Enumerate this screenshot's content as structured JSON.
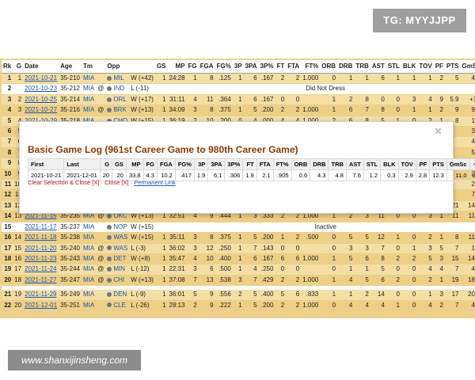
{
  "watermark": {
    "tg": "TG: MYYJJPP",
    "site": "www.shanxijinsheng.com"
  },
  "table": {
    "headers": [
      "Rk",
      "G",
      "Date",
      "Age",
      "Tm",
      "",
      "Opp",
      "",
      "GS",
      "MP",
      "FG",
      "FGA",
      "FG%",
      "3P",
      "3PA",
      "3P%",
      "FT",
      "FTA",
      "FT%",
      "ORB",
      "DRB",
      "TRB",
      "AST",
      "STL",
      "BLK",
      "TOV",
      "PF",
      "PTS",
      "GmSc",
      "+/-"
    ],
    "rows": [
      {
        "rk": "1",
        "g": "1",
        "date": "2021-10-21",
        "age": "35-210",
        "tm": "MIA",
        "loc": "",
        "opp": "MIL",
        "res": "W (+42)",
        "stats": [
          "1",
          "24:28",
          "1",
          "8",
          ".125",
          "1",
          "6",
          ".167",
          "2",
          "2",
          "1.000",
          "0",
          "1",
          "1",
          "6",
          "1",
          "1",
          "1",
          "2",
          "5",
          "4.2",
          "+22"
        ]
      },
      {
        "rk": "2",
        "g": "",
        "date": "2021-10-23",
        "age": "35-212",
        "tm": "MIA",
        "loc": "@",
        "opp": "IND",
        "res": "L (-11)",
        "span": "Did Not Dress"
      },
      {
        "rk": "3",
        "g": "2",
        "date": "2021-10-25",
        "age": "35-214",
        "tm": "MIA",
        "loc": "",
        "opp": "ORL",
        "res": "W (+17)",
        "stats": [
          "1",
          "31:11",
          "4",
          "11",
          ".364",
          "1",
          "6",
          ".167",
          "0",
          "0",
          "",
          "1",
          "2",
          "8",
          "0",
          "0",
          "3",
          "4",
          "9",
          "5.9",
          "+12",
          ""
        ]
      },
      {
        "rk": "4",
        "g": "3",
        "date": "2021-10-27",
        "age": "35-216",
        "tm": "MIA",
        "loc": "@",
        "opp": "BRK",
        "res": "W (+13)",
        "stats": [
          "1",
          "34:09",
          "3",
          "8",
          ".375",
          "1",
          "5",
          ".200",
          "2",
          "2",
          "1.000",
          "1",
          "6",
          "7",
          "8",
          "0",
          "1",
          "1",
          "2",
          "9",
          "9.6",
          "+19"
        ]
      },
      {
        "rk": "5",
        "g": "4",
        "date": "2021-10-29",
        "age": "35-218",
        "tm": "MIA",
        "loc": "",
        "opp": "CHO",
        "res": "W (+15)",
        "stats": [
          "1",
          "36:19",
          "2",
          "10",
          ".200",
          "0",
          "4",
          ".000",
          "4",
          "4",
          "1.000",
          "2",
          "6",
          "8",
          "5",
          "1",
          "0",
          "2",
          "1",
          "8",
          "1.6",
          "+11"
        ]
      },
      {
        "rk": "6",
        "g": "5",
        "date": "",
        "age": "",
        "tm": "",
        "loc": "",
        "opp": "",
        "res": "",
        "stats": [
          "",
          "",
          "",
          "",
          "",
          "",
          "",
          "",
          "",
          "",
          "",
          "",
          "",
          "",
          "",
          "",
          "",
          "",
          "",
          "",
          "3.8",
          "+9"
        ]
      },
      {
        "rk": "7",
        "g": "6",
        "date": "",
        "age": "",
        "tm": "",
        "loc": "",
        "opp": "",
        "res": "",
        "stats": [
          "",
          "",
          "",
          "",
          "",
          "",
          "",
          "",
          "",
          "",
          "",
          "",
          "",
          "",
          "",
          "",
          "",
          "",
          "",
          "",
          "4.9",
          "+2"
        ]
      },
      {
        "rk": "8",
        "g": "7",
        "date": "",
        "age": "",
        "tm": "",
        "loc": "",
        "opp": "",
        "res": "",
        "stats": [
          "",
          "",
          "",
          "",
          "",
          "",
          "",
          "",
          "",
          "",
          "",
          "",
          "",
          "",
          "",
          "",
          "",
          "",
          "",
          "",
          "5.3",
          "+9"
        ]
      },
      {
        "rk": "9",
        "g": "8",
        "date": "",
        "age": "",
        "tm": "",
        "loc": "",
        "opp": "",
        "res": "",
        "stats": [
          "",
          "",
          "",
          "",
          "",
          "",
          "",
          "",
          "",
          "",
          "",
          "",
          "",
          "",
          "",
          "",
          "",
          "",
          "",
          "",
          "6.4",
          "+11"
        ]
      },
      {
        "rk": "10",
        "g": "9",
        "date": "",
        "age": "",
        "tm": "",
        "loc": "",
        "opp": "",
        "res": "",
        "stats": [
          "",
          "",
          "",
          "",
          "",
          "",
          "",
          "",
          "",
          "",
          "",
          "",
          "",
          "",
          "",
          "",
          "",
          "",
          "",
          "",
          "2.2",
          "-13"
        ]
      },
      {
        "rk": "11",
        "g": "10",
        "date": "",
        "age": "",
        "tm": "",
        "loc": "",
        "opp": "",
        "res": "",
        "stats": [
          "",
          "",
          "",
          "",
          "",
          "",
          "",
          "",
          "",
          "",
          "",
          "",
          "",
          "",
          "",
          "",
          "",
          "",
          "",
          "",
          "2.9",
          "-8"
        ]
      },
      {
        "rk": "12",
        "g": "11",
        "date": "",
        "age": "",
        "tm": "",
        "loc": "",
        "opp": "",
        "res": "",
        "stats": [
          "",
          "",
          "",
          "",
          "",
          "",
          "",
          "",
          "",
          "",
          "",
          "",
          "",
          "",
          "",
          "",
          "",
          "",
          "",
          "",
          "7.9",
          "-6"
        ]
      },
      {
        "rk": "13",
        "g": "12",
        "date": "2021-11-13",
        "age": "35-233",
        "tm": "MIA",
        "loc": "@",
        "opp": "UTA",
        "res": "W (+6)",
        "stats": [
          "1",
          "35:01",
          "8",
          "14",
          ".571",
          "2",
          "6",
          ".333",
          "2",
          "3",
          ".667",
          "0",
          "6",
          "6",
          "4",
          "2",
          "0",
          "5",
          "3",
          "21",
          "14.8",
          "+4"
        ]
      },
      {
        "rk": "14",
        "g": "13",
        "date": "2021-11-15",
        "age": "35-235",
        "tm": "MIA",
        "loc": "@",
        "opp": "OKC",
        "res": "W (+13)",
        "stats": [
          "1",
          "32:51",
          "4",
          "9",
          ".444",
          "1",
          "3",
          ".333",
          "2",
          "2",
          "1.000",
          "1",
          "2",
          "3",
          "11",
          "0",
          "0",
          "3",
          "1",
          "11",
          "11.9",
          "+3"
        ]
      },
      {
        "rk": "15",
        "g": "",
        "date": "2021-11-17",
        "age": "35-237",
        "tm": "MIA",
        "loc": "",
        "opp": "NOP",
        "res": "W (+15)",
        "span": "Inactive"
      },
      {
        "rk": "16",
        "g": "14",
        "date": "2021-11-18",
        "age": "35-238",
        "tm": "MIA",
        "loc": "",
        "opp": "WAS",
        "res": "W (+15)",
        "stats": [
          "1",
          "35:11",
          "3",
          "8",
          ".375",
          "1",
          "5",
          ".200",
          "1",
          "2",
          ".500",
          "0",
          "5",
          "5",
          "12",
          "1",
          "0",
          "2",
          "1",
          "8",
          "11.7",
          "+13"
        ]
      },
      {
        "rk": "17",
        "g": "15",
        "date": "2021-11-20",
        "age": "35-240",
        "tm": "MIA",
        "loc": "@",
        "opp": "WAS",
        "res": "L (-3)",
        "stats": [
          "1",
          "36:02",
          "3",
          "12",
          ".250",
          "1",
          "7",
          ".143",
          "0",
          "0",
          "",
          "0",
          "3",
          "3",
          "7",
          "0",
          "1",
          "3",
          "5",
          "7",
          "1.3",
          "+2",
          ""
        ]
      },
      {
        "rk": "18",
        "g": "16",
        "date": "2021-11-23",
        "age": "35-243",
        "tm": "MIA",
        "loc": "@",
        "opp": "DET",
        "res": "W (+8)",
        "stats": [
          "1",
          "35:47",
          "4",
          "10",
          ".400",
          "1",
          "6",
          ".167",
          "6",
          "6",
          "1.000",
          "1",
          "5",
          "6",
          "8",
          "2",
          "2",
          "5",
          "3",
          "15",
          "14.6",
          "+11"
        ]
      },
      {
        "rk": "19",
        "g": "17",
        "date": "2021-11-24",
        "age": "35-244",
        "tm": "MIA",
        "loc": "@",
        "opp": "MIN",
        "res": "L (-12)",
        "stats": [
          "1",
          "22:31",
          "3",
          "6",
          ".500",
          "1",
          "4",
          ".250",
          "0",
          "0",
          "",
          "0",
          "1",
          "1",
          "5",
          "0",
          "0",
          "4",
          "4",
          "7",
          "4.4",
          "+4",
          ""
        ]
      },
      {
        "rk": "20",
        "g": "18",
        "date": "2021-11-27",
        "age": "35-247",
        "tm": "MIA",
        "loc": "@",
        "opp": "CHI",
        "res": "W (+13)",
        "stats": [
          "1",
          "37:08",
          "7",
          "13",
          ".538",
          "3",
          "7",
          ".429",
          "2",
          "2",
          "1.000",
          "1",
          "4",
          "5",
          "6",
          "2",
          "0",
          "2",
          "1",
          "19",
          "18.4",
          "+5"
        ]
      },
      {
        "rk": "21",
        "g": "19",
        "date": "2021-11-29",
        "age": "35-249",
        "tm": "MIA",
        "loc": "",
        "opp": "DEN",
        "res": "L (-9)",
        "stats": [
          "1",
          "36:01",
          "5",
          "9",
          ".556",
          "2",
          "5",
          ".400",
          "5",
          "6",
          ".833",
          "1",
          "1",
          "2",
          "14",
          "0",
          "0",
          "1",
          "3",
          "17",
          "20.9",
          "-11"
        ]
      },
      {
        "rk": "22",
        "g": "20",
        "date": "2021-12-01",
        "age": "35-251",
        "tm": "MIA",
        "loc": "",
        "opp": "CLE",
        "res": "L (-26)",
        "stats": [
          "1",
          "28:13",
          "2",
          "9",
          ".222",
          "1",
          "5",
          ".200",
          "2",
          "2",
          "1.000",
          "0",
          "4",
          "4",
          "4",
          "1",
          "0",
          "4",
          "2",
          "7",
          "4.6",
          "-16"
        ]
      }
    ]
  },
  "modal": {
    "close": "×",
    "title": "Basic Game Log (961st Career Game to 980th Career Game)",
    "headers": [
      "First",
      "Last",
      "G",
      "GS",
      "MP",
      "FG",
      "FGA",
      "FG%",
      "3P",
      "3PA",
      "3P%",
      "FT",
      "FTA",
      "FT%",
      "ORB",
      "DRB",
      "TRB",
      "AST",
      "STL",
      "BLK",
      "TOV",
      "PF",
      "PTS",
      "GmSc",
      "+/-"
    ],
    "row": [
      "2021-10-21",
      "2021-12-01",
      "20",
      "20",
      "33.8",
      "4.3",
      "10.2",
      ".417",
      "1.9",
      "6.1",
      ".306",
      "1.9",
      "2.1",
      ".905",
      "0.6",
      "4.3",
      "4.8",
      "7.6",
      "1.2",
      "0.3",
      "2.9",
      "2.8",
      "12.3",
      "11.0",
      "2.9"
    ],
    "links_text": "Clear Selection & Close [X] · Close [X] · ",
    "permanent_link": "Permanent Link"
  }
}
